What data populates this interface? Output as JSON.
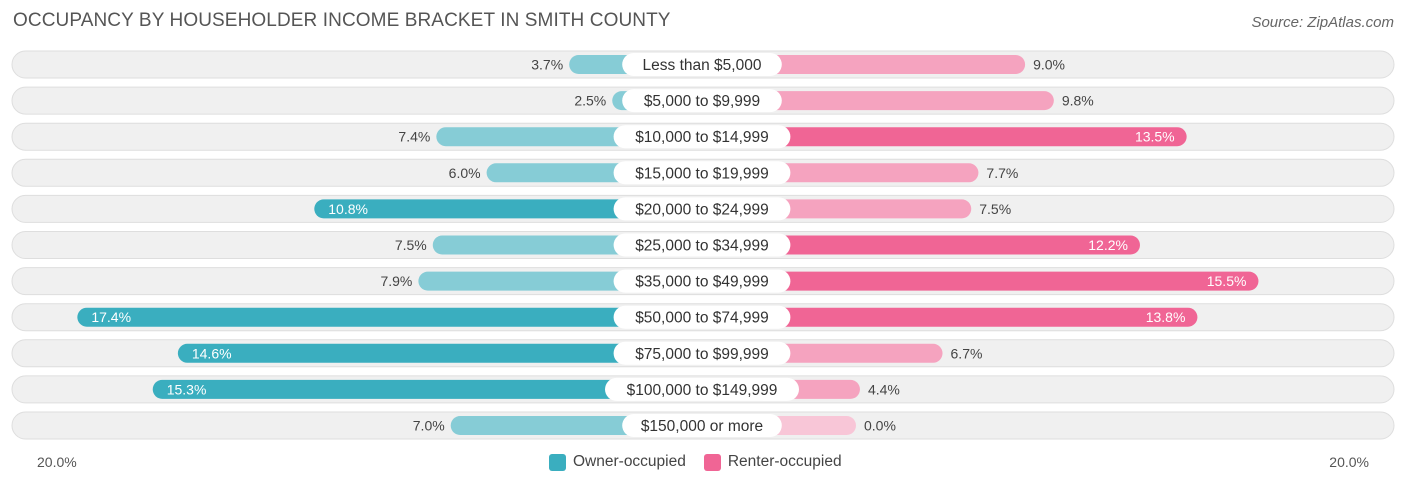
{
  "title": "OCCUPANCY BY HOUSEHOLDER INCOME BRACKET IN SMITH COUNTY",
  "source": "Source: ZipAtlas.com",
  "colors": {
    "owner": "#3aaebf",
    "owner_light": "#86ccd6",
    "renter": "#f06595",
    "renter_light": "#f5a3bf",
    "row_bg": "#f0f0f0"
  },
  "chart_data": {
    "type": "bar",
    "orientation": "horizontal-diverging",
    "categories": [
      "Less than $5,000",
      "$5,000 to $9,999",
      "$10,000 to $14,999",
      "$15,000 to $19,999",
      "$20,000 to $24,999",
      "$25,000 to $34,999",
      "$35,000 to $49,999",
      "$50,000 to $74,999",
      "$75,000 to $99,999",
      "$100,000 to $149,999",
      "$150,000 or more"
    ],
    "series": [
      {
        "name": "Owner-occupied",
        "values": [
          3.7,
          2.5,
          7.4,
          6.0,
          10.8,
          7.5,
          7.9,
          17.4,
          14.6,
          15.3,
          7.0
        ]
      },
      {
        "name": "Renter-occupied",
        "values": [
          9.0,
          9.8,
          13.5,
          7.7,
          7.5,
          12.2,
          15.5,
          13.8,
          6.7,
          4.4,
          0.0
        ]
      }
    ],
    "value_labels": {
      "owner": [
        "3.7%",
        "2.5%",
        "7.4%",
        "6.0%",
        "10.8%",
        "7.5%",
        "7.9%",
        "17.4%",
        "14.6%",
        "15.3%",
        "7.0%"
      ],
      "renter": [
        "9.0%",
        "9.8%",
        "13.5%",
        "7.7%",
        "7.5%",
        "12.2%",
        "15.5%",
        "13.8%",
        "6.7%",
        "4.4%",
        "0.0%"
      ]
    },
    "xlim": [
      -20,
      20
    ],
    "axis_labels": {
      "left": "20.0%",
      "right": "20.0%"
    },
    "legend_position": "bottom-center",
    "grid": false
  }
}
